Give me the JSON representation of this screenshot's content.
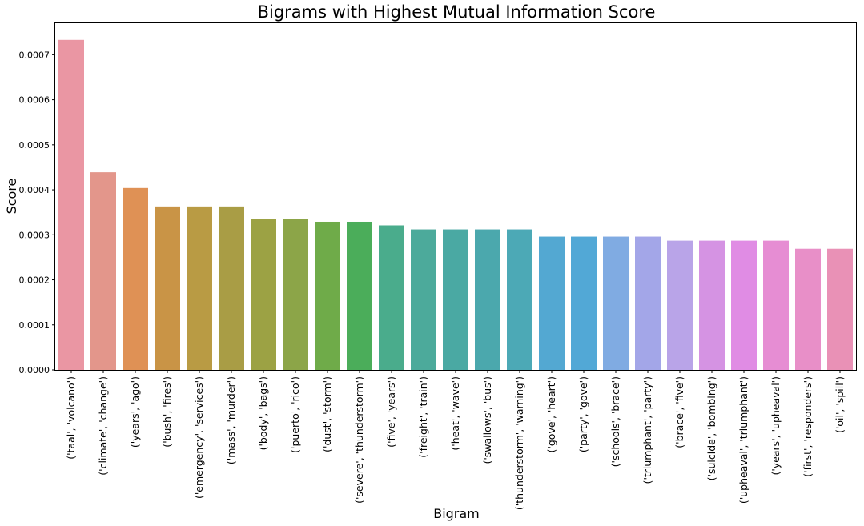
{
  "chart_data": {
    "type": "bar",
    "title": "Bigrams with Highest Mutual Information Score",
    "xlabel": "Bigram",
    "ylabel": "Score",
    "ylim": [
      0,
      0.00077
    ],
    "yticks": [
      "0.0000",
      "0.0001",
      "0.0002",
      "0.0003",
      "0.0004",
      "0.0005",
      "0.0006",
      "0.0007"
    ],
    "grid": false,
    "categories": [
      "('taal', 'volcano')",
      "('climate', 'change')",
      "('years', 'ago')",
      "('bush', 'fires')",
      "('emergency', 'services')",
      "('mass', 'murder')",
      "('body', 'bags')",
      "('puerto', 'rico')",
      "('dust', 'storm')",
      "('severe', 'thunderstorm')",
      "('five', 'years')",
      "('freight', 'train')",
      "('heat', 'wave')",
      "('swallows', 'bus')",
      "('thunderstorm', 'warning')",
      "('gove', 'heart')",
      "('party', 'gove')",
      "('schools', 'brace')",
      "('triumphant', 'party')",
      "('brace', 'five')",
      "('suicide', 'bombing')",
      "('upheaval', 'triumphant')",
      "('years', 'upheaval')",
      "('first', 'responders')",
      "('oil', 'spill')"
    ],
    "values": [
      0.000733,
      0.000439,
      0.000404,
      0.000363,
      0.000363,
      0.000363,
      0.000336,
      0.000336,
      0.000329,
      0.000329,
      0.000321,
      0.000312,
      0.000312,
      0.000312,
      0.000312,
      0.000296,
      0.000296,
      0.000296,
      0.000296,
      0.000287,
      0.000287,
      0.000287,
      0.000287,
      0.000269,
      0.000269
    ],
    "colors": [
      "#ea96a3",
      "#e3968b",
      "#df9155",
      "#c99446",
      "#b99b44",
      "#a99d45",
      "#9ca244",
      "#8ca548",
      "#6fab49",
      "#4bad5a",
      "#4aac8c",
      "#4caa9b",
      "#4aa9a3",
      "#4ba8ad",
      "#4ca9b6",
      "#53a8d2",
      "#52a8d6",
      "#80abe2",
      "#a3a6e8",
      "#b9a4e8",
      "#d593e3",
      "#e08ce4",
      "#e68dd3",
      "#e88fc8",
      "#e991b6"
    ]
  }
}
